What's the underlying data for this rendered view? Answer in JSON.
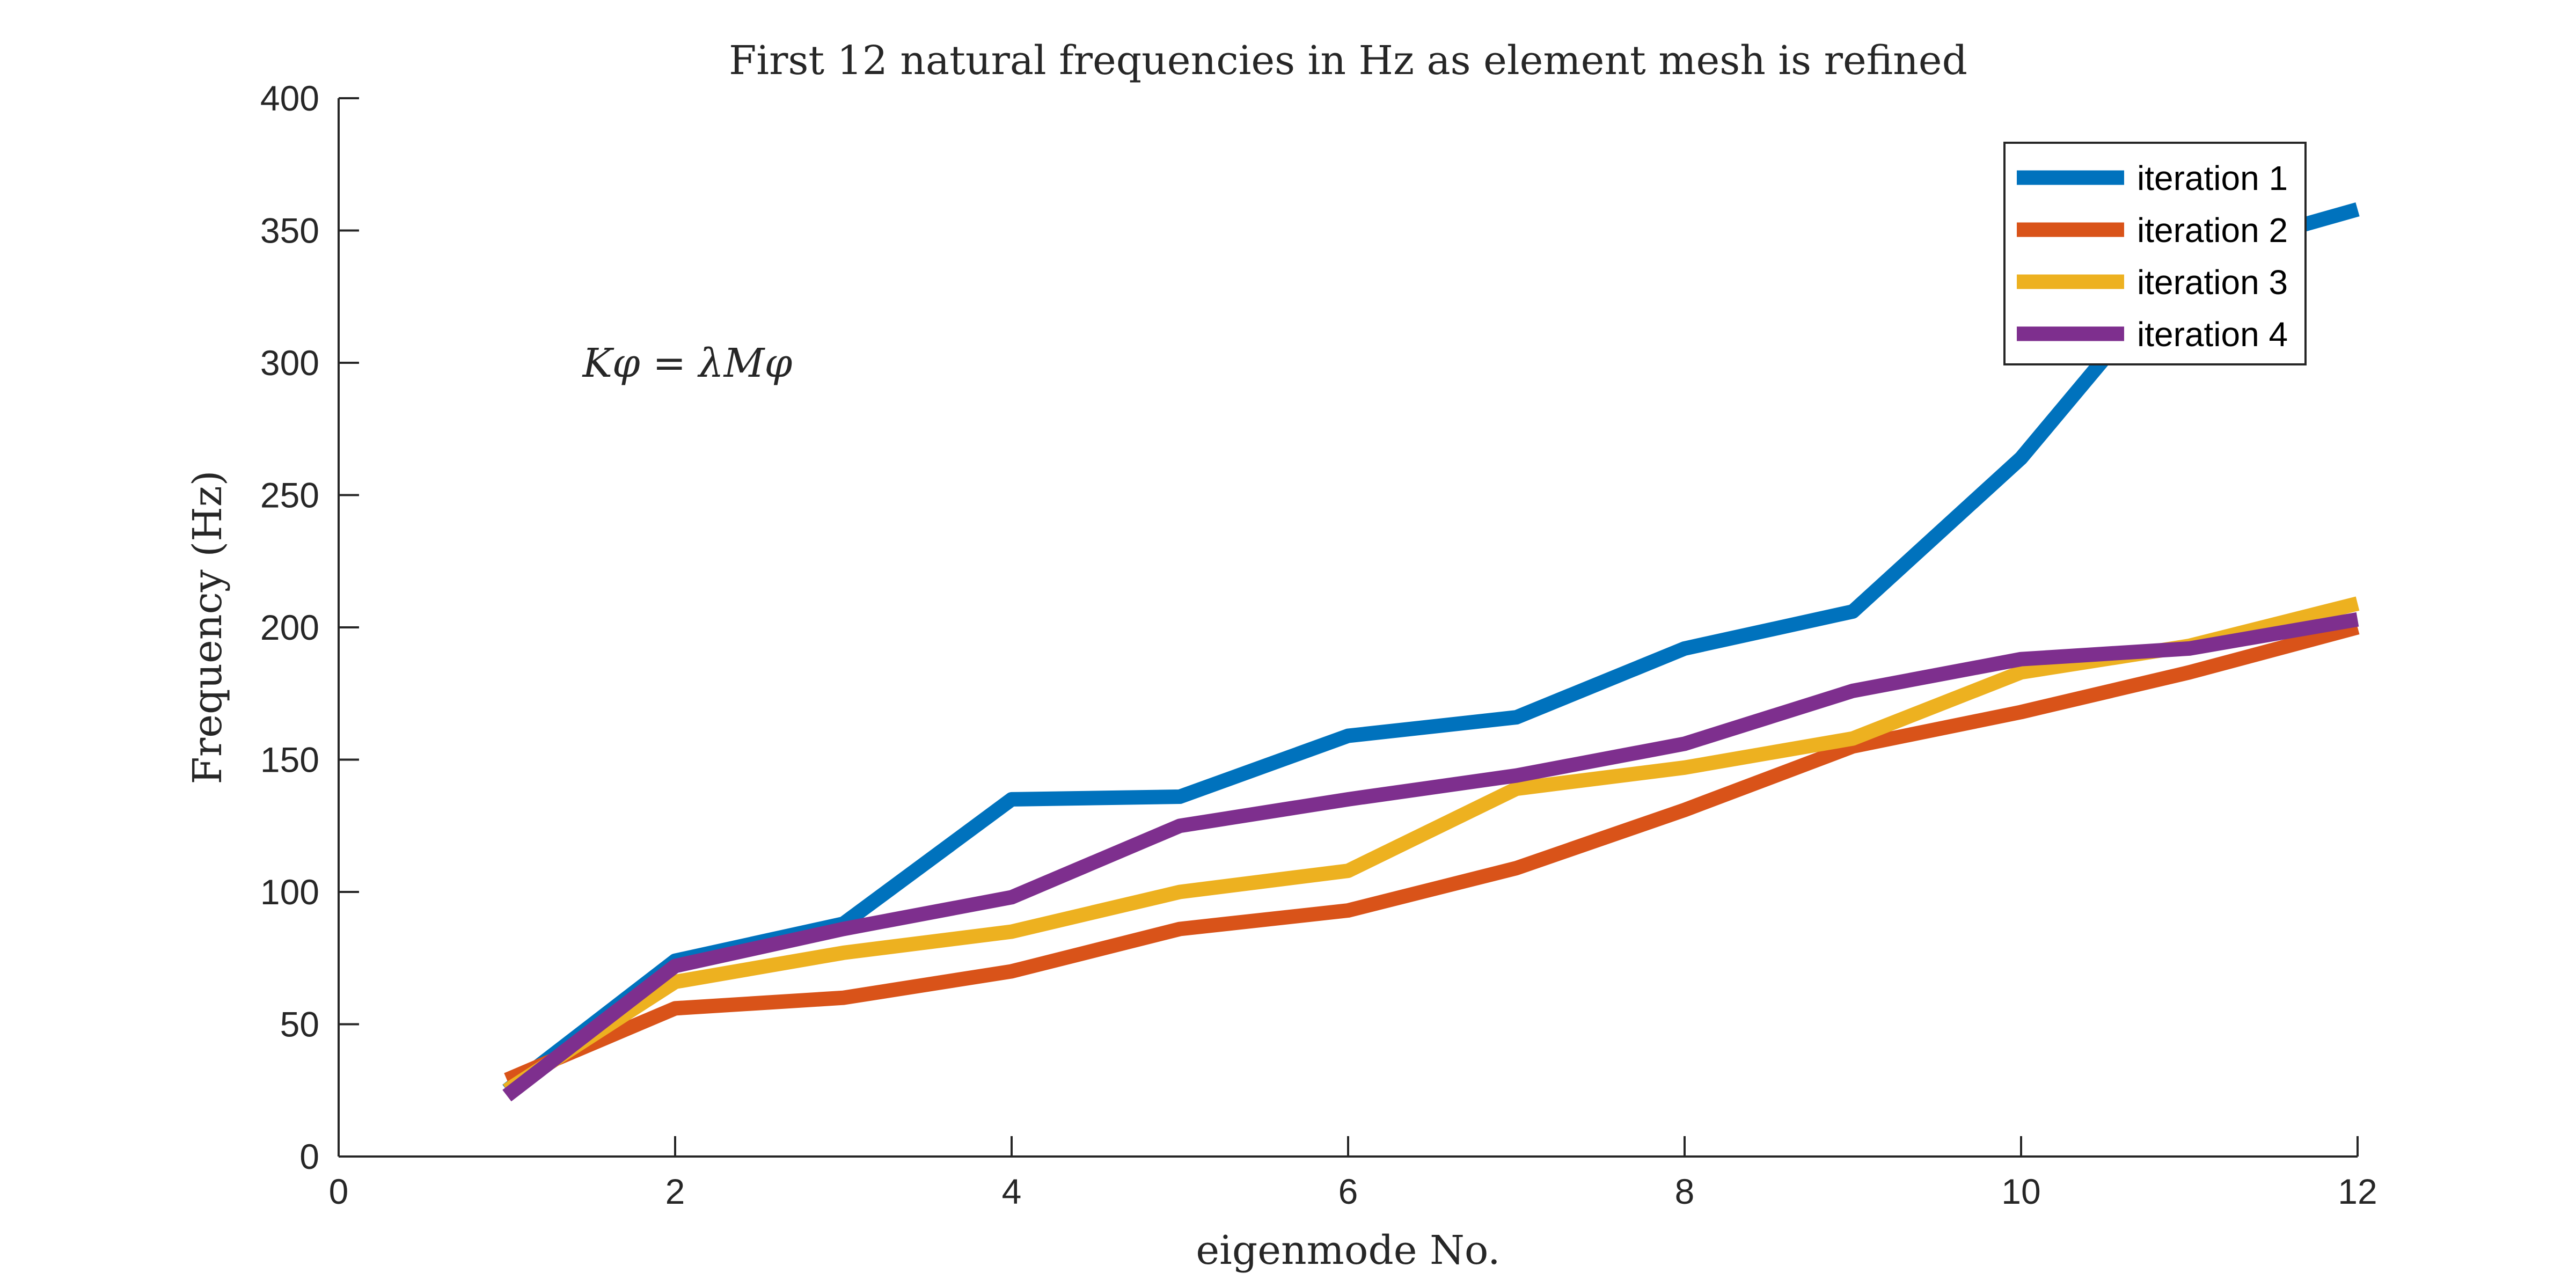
{
  "chart_data": {
    "type": "line",
    "title": "First 12 natural frequencies in Hz as element mesh is refined",
    "xlabel": "eigenmode No.",
    "ylabel": "Frequency (Hz)",
    "xlim": [
      0,
      12
    ],
    "ylim": [
      0,
      400
    ],
    "xticks": [
      0,
      2,
      4,
      6,
      8,
      10,
      12
    ],
    "yticks": [
      0,
      50,
      100,
      150,
      200,
      250,
      300,
      350,
      400
    ],
    "grid": false,
    "legend_position": "top-right",
    "annotation": {
      "text": "Kφ = λMφ",
      "parts": [
        "K",
        "φ",
        " = ",
        "λ",
        "M",
        "φ"
      ],
      "x": 1.45,
      "y": 300
    },
    "x": [
      1,
      2,
      3,
      4,
      5,
      6,
      7,
      8,
      9,
      10,
      11,
      12
    ],
    "series": [
      {
        "name": "iteration 1",
        "color": "#0072BD",
        "values": [
          25,
          74,
          88,
          135,
          136,
          159,
          166,
          192,
          206,
          264,
          340,
          358
        ]
      },
      {
        "name": "iteration 2",
        "color": "#D95319",
        "values": [
          29,
          56,
          60,
          70,
          86,
          93,
          109,
          131,
          155,
          168,
          183,
          200
        ]
      },
      {
        "name": "iteration 3",
        "color": "#EDB120",
        "values": [
          25,
          66,
          77,
          85,
          100,
          108,
          139,
          147,
          158,
          183,
          193,
          209
        ]
      },
      {
        "name": "iteration 4",
        "color": "#7E2F8E",
        "values": [
          23,
          72,
          86,
          98,
          125,
          135,
          144,
          156,
          176,
          188,
          192,
          203
        ]
      }
    ]
  }
}
